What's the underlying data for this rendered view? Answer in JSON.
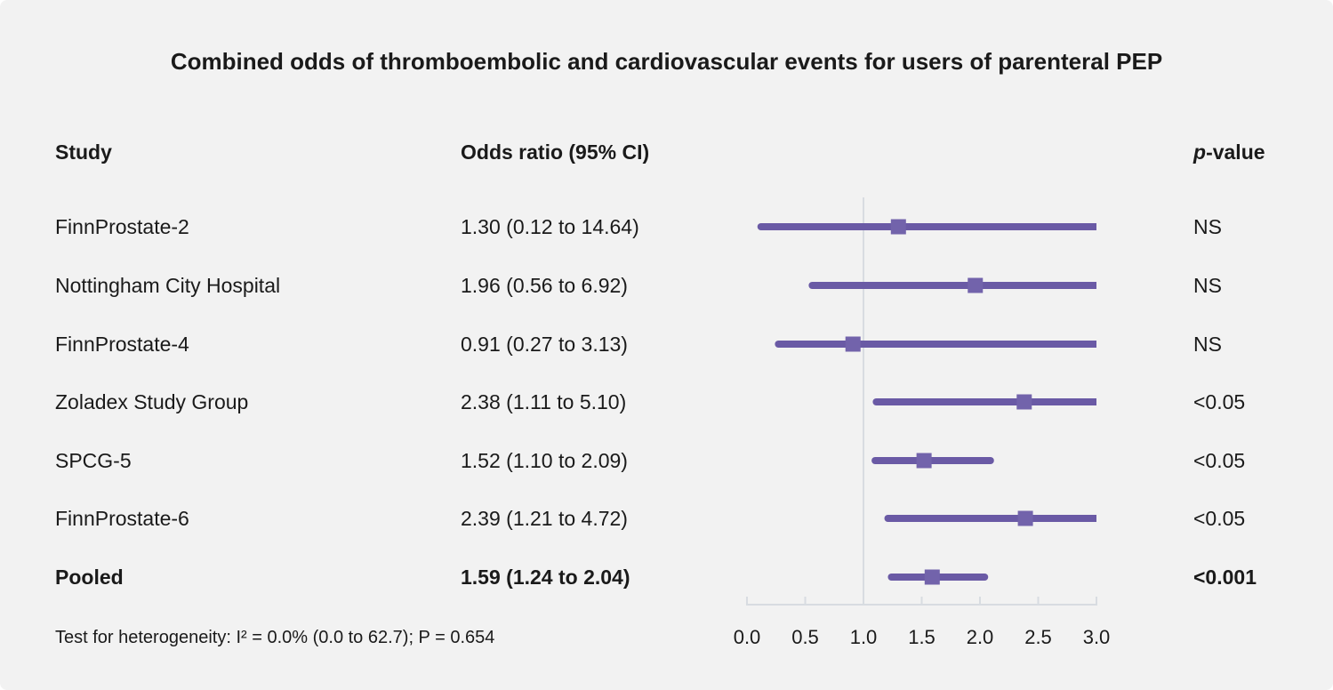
{
  "title": "Combined odds of thromboembolic and cardiovascular events for users of parenteral PEP",
  "columns": {
    "study": "Study",
    "odds_ratio": "Odds ratio (95% CI)",
    "p_value_italic": "p",
    "p_value_rest": "-value"
  },
  "footer": "Test for heterogeneity: I² = 0.0% (0.0 to 62.7); P = 0.654",
  "colors": {
    "background": "#f2f2f2",
    "text": "#1a1a1a",
    "ci_line": "#6a5aa5",
    "marker": "#7263ab",
    "axis": "#d8dce1"
  },
  "chart_data": {
    "type": "forest",
    "title": "Combined odds of thromboembolic and cardiovascular events for users of parenteral PEP",
    "xlabel": "Odds ratio (95% CI)",
    "axis": {
      "min": 0.0,
      "max": 3.0,
      "tick_step": 0.5,
      "ticks": [
        "0.0",
        "0.5",
        "1.0",
        "1.5",
        "2.0",
        "2.5",
        "3.0"
      ],
      "reference_line": 1.0,
      "grid": false
    },
    "rows": [
      {
        "study": "FinnProstate-2",
        "or_ci": "1.30 (0.12 to 14.64)",
        "estimate": 1.3,
        "ci_low": 0.12,
        "ci_high": 14.64,
        "p_value": "NS",
        "bold": false
      },
      {
        "study": "Nottingham City Hospital",
        "or_ci": "1.96 (0.56 to 6.92)",
        "estimate": 1.96,
        "ci_low": 0.56,
        "ci_high": 6.92,
        "p_value": "NS",
        "bold": false
      },
      {
        "study": "FinnProstate-4",
        "or_ci": "0.91 (0.27 to 3.13)",
        "estimate": 0.91,
        "ci_low": 0.27,
        "ci_high": 3.13,
        "p_value": "NS",
        "bold": false
      },
      {
        "study": "Zoladex Study Group",
        "or_ci": "2.38 (1.11 to 5.10)",
        "estimate": 2.38,
        "ci_low": 1.11,
        "ci_high": 5.1,
        "p_value": "<0.05",
        "bold": false
      },
      {
        "study": "SPCG-5",
        "or_ci": "1.52 (1.10 to 2.09)",
        "estimate": 1.52,
        "ci_low": 1.1,
        "ci_high": 2.09,
        "p_value": "<0.05",
        "bold": false
      },
      {
        "study": "FinnProstate-6",
        "or_ci": "2.39 (1.21 to 4.72)",
        "estimate": 2.39,
        "ci_low": 1.21,
        "ci_high": 4.72,
        "p_value": "<0.05",
        "bold": false
      },
      {
        "study": "Pooled",
        "or_ci": "1.59 (1.24 to 2.04)",
        "estimate": 1.59,
        "ci_low": 1.24,
        "ci_high": 2.04,
        "p_value": "<0.001",
        "bold": true
      }
    ]
  }
}
